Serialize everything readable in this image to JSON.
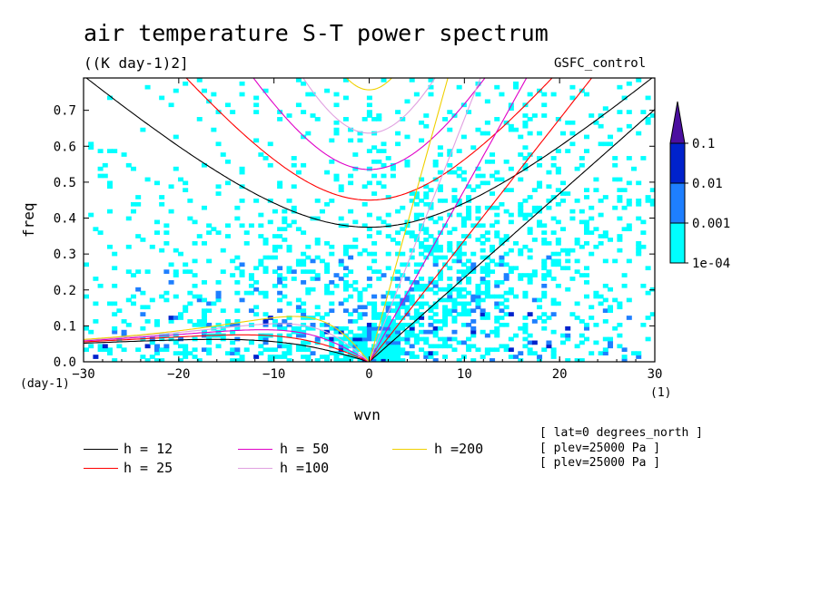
{
  "title": "air temperature S-T power spectrum",
  "units": "((K day-1)2]",
  "dataset": "GSFC_control",
  "chart_data": {
    "type": "heatmap",
    "xlabel": "wvn",
    "ylabel": "freq",
    "xunit": "(1)",
    "yunit": "(day-1)",
    "xlim": [
      -30,
      30
    ],
    "ylim": [
      0,
      0.79
    ],
    "xticks": [
      -30,
      -20,
      -10,
      0,
      10,
      20,
      30
    ],
    "yticks": [
      0.0,
      0.1,
      0.2,
      0.3,
      0.4,
      0.5,
      0.6,
      0.7
    ],
    "ytick_labels": [
      "0.0",
      "0.1",
      "0.2",
      "0.3",
      "0.4",
      "0.5",
      "0.6",
      "0.7"
    ],
    "colorbar": {
      "levels": [
        "1e-04",
        "0.001",
        "0.01",
        "0.1"
      ],
      "colors": [
        "#00ffff",
        "#1e7fff",
        "#0022cc",
        "#4b0fa0"
      ]
    },
    "dispersion_curves": [
      {
        "label": "h = 12",
        "h": 12,
        "color": "#000000"
      },
      {
        "label": "h = 25",
        "h": 25,
        "color": "#ff0000"
      },
      {
        "label": "h = 50",
        "h": 50,
        "color": "#e000c8"
      },
      {
        "label": "h =100",
        "h": 100,
        "color": "#e0a0e0"
      },
      {
        "label": "h =200",
        "h": 200,
        "color": "#f0d000"
      }
    ]
  },
  "info": [
    "[ lat=0 degrees_north ]",
    "[ plev=25000 Pa ]",
    "[ plev=25000 Pa ]"
  ]
}
